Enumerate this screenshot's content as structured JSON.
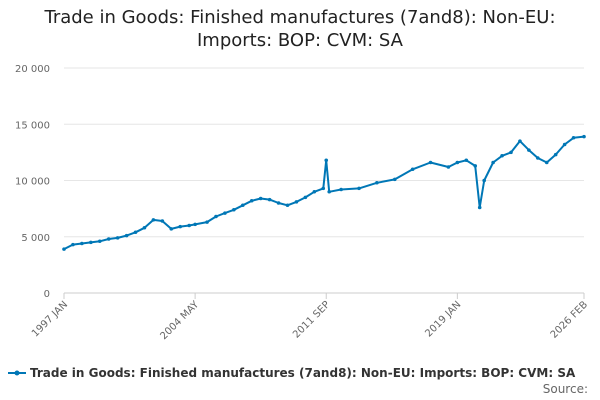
{
  "chart_data": {
    "type": "line",
    "title_lines": [
      "Trade in Goods: Finished manufactures (7and8): Non-EU:",
      "Imports: BOP: CVM: SA"
    ],
    "xlabel": "",
    "ylabel": "",
    "ylim": [
      0,
      20000
    ],
    "y_ticks": [
      0,
      5000,
      10000,
      15000,
      20000
    ],
    "y_tick_labels": [
      "0",
      "5 000",
      "10 000",
      "15 000",
      "20 000"
    ],
    "x_range": [
      "1997-01",
      "2026-02"
    ],
    "x_ticks": [
      "1997-01",
      "2004-05",
      "2011-09",
      "2019-01",
      "2026-02"
    ],
    "x_tick_labels": [
      "1997 JAN",
      "2004 MAY",
      "2011 SEP",
      "2019 JAN",
      "2026 FEB"
    ],
    "grid": "horizontal",
    "legend_position": "bottom-left",
    "series": [
      {
        "name": "Trade in Goods: Finished manufactures (7and8): Non-EU: Imports: BOP: CVM: SA",
        "color": "#0077b6",
        "points": [
          [
            "1997-01",
            3900
          ],
          [
            "1997-07",
            4300
          ],
          [
            "1998-01",
            4400
          ],
          [
            "1998-07",
            4500
          ],
          [
            "1999-01",
            4600
          ],
          [
            "1999-07",
            4800
          ],
          [
            "2000-01",
            4900
          ],
          [
            "2000-07",
            5100
          ],
          [
            "2001-01",
            5400
          ],
          [
            "2001-07",
            5800
          ],
          [
            "2002-01",
            6500
          ],
          [
            "2002-07",
            6400
          ],
          [
            "2003-01",
            5700
          ],
          [
            "2003-07",
            5900
          ],
          [
            "2004-01",
            6000
          ],
          [
            "2004-05",
            6100
          ],
          [
            "2005-01",
            6300
          ],
          [
            "2005-07",
            6800
          ],
          [
            "2006-01",
            7100
          ],
          [
            "2006-07",
            7400
          ],
          [
            "2007-01",
            7800
          ],
          [
            "2007-07",
            8200
          ],
          [
            "2008-01",
            8400
          ],
          [
            "2008-07",
            8300
          ],
          [
            "2009-01",
            8000
          ],
          [
            "2009-07",
            7800
          ],
          [
            "2010-01",
            8100
          ],
          [
            "2010-07",
            8500
          ],
          [
            "2011-01",
            9000
          ],
          [
            "2011-07",
            9300
          ],
          [
            "2011-09",
            11800
          ],
          [
            "2011-11",
            9000
          ],
          [
            "2012-07",
            9200
          ],
          [
            "2013-07",
            9300
          ],
          [
            "2014-07",
            9800
          ],
          [
            "2015-07",
            10100
          ],
          [
            "2016-07",
            11000
          ],
          [
            "2017-07",
            11600
          ],
          [
            "2018-07",
            11200
          ],
          [
            "2019-01",
            11600
          ],
          [
            "2019-07",
            11800
          ],
          [
            "2020-01",
            11300
          ],
          [
            "2020-04",
            7600
          ],
          [
            "2020-07",
            10000
          ],
          [
            "2021-01",
            11600
          ],
          [
            "2021-07",
            12200
          ],
          [
            "2022-01",
            12500
          ],
          [
            "2022-07",
            13500
          ],
          [
            "2023-01",
            12700
          ],
          [
            "2023-07",
            12000
          ],
          [
            "2024-01",
            11600
          ],
          [
            "2024-07",
            12300
          ],
          [
            "2025-01",
            13200
          ],
          [
            "2025-07",
            13800
          ],
          [
            "2026-02",
            13900
          ]
        ]
      }
    ]
  },
  "source_label": "Source:"
}
